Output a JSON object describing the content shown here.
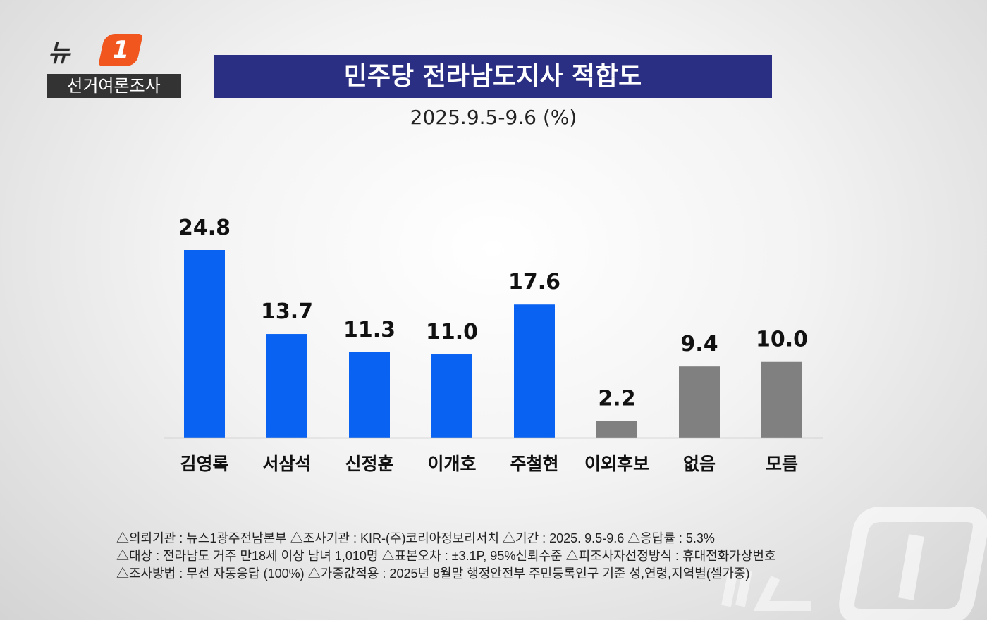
{
  "logo": {
    "word": "뉴스",
    "one": "1",
    "tag": "선거여론조사"
  },
  "watermark": "뉴스1",
  "chart_data": {
    "type": "bar",
    "title": "민주당 전라남도지사 적합도",
    "subtitle": "2025.9.5-9.6 (%)",
    "categories": [
      "김영록",
      "서삼석",
      "신정훈",
      "이개호",
      "주철현",
      "이외후보",
      "없음",
      "모름"
    ],
    "values": [
      24.8,
      13.7,
      11.3,
      11.0,
      17.6,
      2.2,
      9.4,
      10.0
    ],
    "value_labels": [
      "24.8",
      "13.7",
      "11.3",
      "11.0",
      "17.6",
      "2.2",
      "9.4",
      "10.0"
    ],
    "colors": [
      "#0a62f2",
      "#0a62f2",
      "#0a62f2",
      "#0a62f2",
      "#0a62f2",
      "#808080",
      "#808080",
      "#808080"
    ],
    "ylim": [
      0,
      24.8
    ],
    "grid": false
  },
  "footer": {
    "lines": [
      "△의뢰기관 : 뉴스1광주전남본부 △조사기관 : KIR-(주)코리아정보리서치 △기간 : 2025. 9.5-9.6  △응답률 : 5.3%",
      "△대상 : 전라남도 거주 만18세 이상 남녀 1,010명  △표본오차 : ±3.1P, 95%신뢰수준  △피조사자선정방식 : 휴대전화가상번호",
      "△조사방법 : 무선 자동응답 (100%) △가중값적용 : 2025년 8월말 행정안전부 주민등록인구 기준 성,연령,지역별(셀가중)"
    ]
  }
}
